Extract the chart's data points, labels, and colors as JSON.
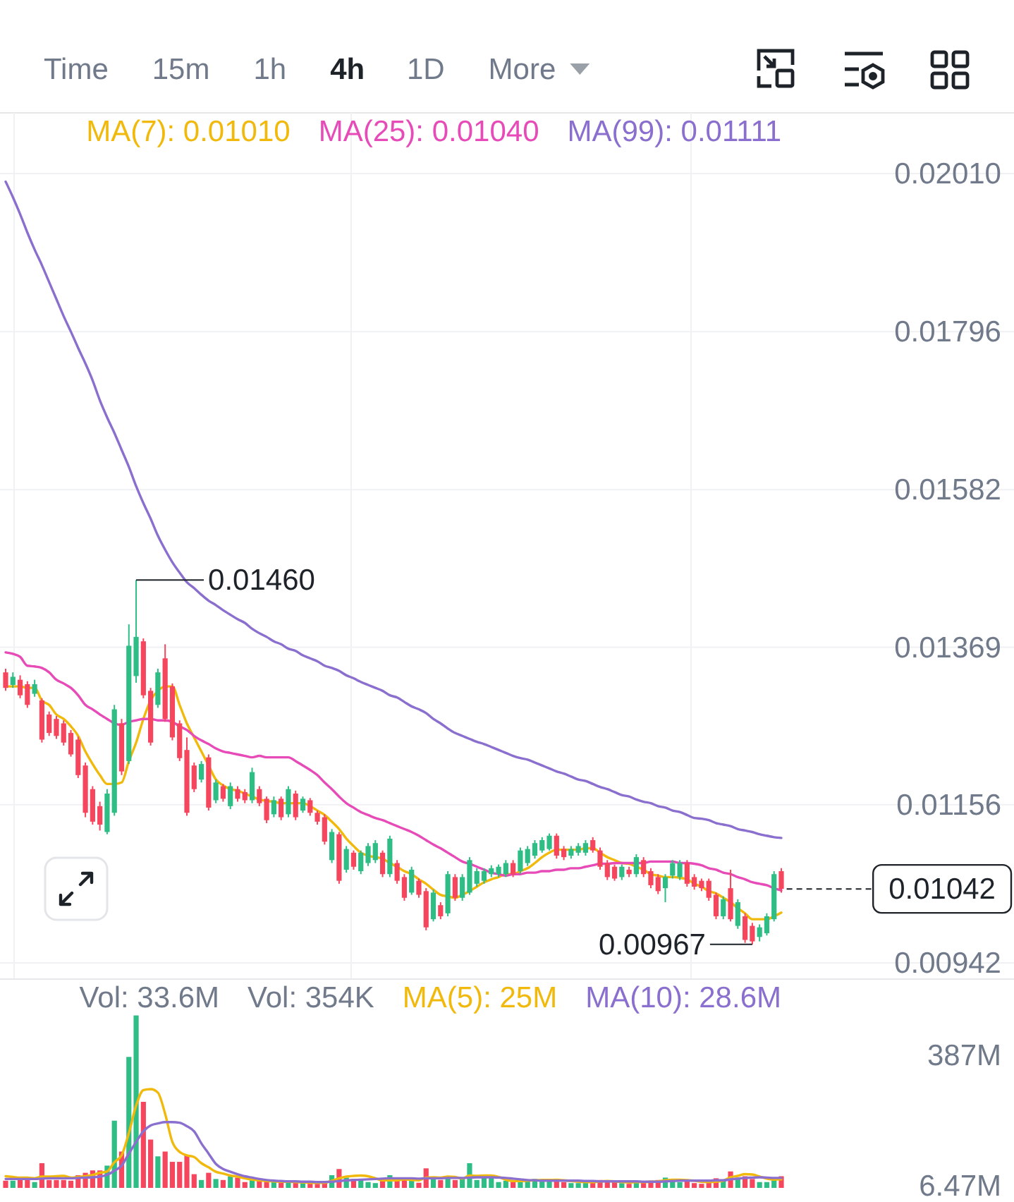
{
  "chart_data": [
    {
      "type": "other",
      "annotations": [
        "Time",
        "15m",
        "1h",
        "4h",
        "1D",
        "More"
      ]
    },
    {
      "type": "candlestick",
      "categories": [
        null,
        null,
        null,
        null,
        null,
        null,
        null,
        null,
        null,
        null,
        null,
        null,
        null,
        null,
        null,
        null,
        null,
        null,
        null,
        null,
        null,
        null,
        null,
        null,
        null,
        null,
        null,
        null,
        null,
        null,
        null,
        null,
        null,
        null,
        null,
        null,
        null,
        null,
        null,
        null,
        null,
        null,
        null,
        null,
        null,
        null,
        null,
        null,
        null,
        null,
        null,
        null,
        null,
        null,
        null,
        null,
        null,
        null,
        null,
        null,
        null,
        null,
        null,
        null,
        null,
        null,
        null,
        null,
        null,
        null,
        null,
        null,
        null,
        null,
        null,
        null,
        null,
        null,
        null,
        null,
        null,
        null,
        null,
        null,
        null,
        null,
        null,
        null,
        null,
        null,
        null,
        null,
        null,
        null,
        null,
        null,
        null,
        null,
        null,
        null,
        null,
        null,
        null,
        null,
        null,
        null,
        null,
        null
      ],
      "ohlc": [
        [
          0.01335,
          0.0134,
          0.0131,
          0.01314
        ],
        [
          0.01318,
          0.01335,
          0.01314,
          0.01329
        ],
        [
          0.01325,
          0.01331,
          0.013,
          0.01304
        ],
        [
          0.01319,
          0.01323,
          0.01287,
          0.01291
        ],
        [
          0.01306,
          0.01325,
          0.01302,
          0.01319
        ],
        [
          0.01297,
          0.013,
          0.0124,
          0.01244
        ],
        [
          0.01278,
          0.01282,
          0.01249,
          0.01253
        ],
        [
          0.01272,
          0.01276,
          0.01245,
          0.01249
        ],
        [
          0.01266,
          0.0127,
          0.01236,
          0.0124
        ],
        [
          0.01253,
          0.01257,
          0.01221,
          0.01224
        ],
        [
          0.01244,
          0.01248,
          0.01192,
          0.01196
        ],
        [
          0.01209,
          0.01213,
          0.01139,
          0.01145
        ],
        [
          0.01177,
          0.01181,
          0.01129,
          0.01133
        ],
        [
          0.01154,
          0.0116,
          0.01121,
          0.01129
        ],
        [
          0.01119,
          0.01177,
          0.01116,
          0.01171
        ],
        [
          0.01145,
          0.01291,
          0.01141,
          0.01285
        ],
        [
          0.01266,
          0.01272,
          0.01196,
          0.01201
        ],
        [
          0.01215,
          0.014,
          0.01211,
          0.01371
        ],
        [
          0.0133,
          0.0146,
          0.01321,
          0.01383
        ],
        [
          0.01377,
          0.01381,
          0.013,
          0.01304
        ],
        [
          0.0131,
          0.01314,
          0.01236,
          0.0124
        ],
        [
          0.01291,
          0.0134,
          0.01287,
          0.01335
        ],
        [
          0.01354,
          0.01373,
          0.01268,
          0.01272
        ],
        [
          0.01316,
          0.0132,
          0.01243,
          0.01247
        ],
        [
          0.01266,
          0.0127,
          0.01215,
          0.01219
        ],
        [
          0.0123,
          0.01247,
          0.01141,
          0.01145
        ],
        [
          0.01209,
          0.01213,
          0.01173,
          0.01177
        ],
        [
          0.0119,
          0.01215,
          0.01186,
          0.01211
        ],
        [
          0.0122,
          0.01224,
          0.01148,
          0.01152
        ],
        [
          0.01162,
          0.0119,
          0.01158,
          0.01186
        ],
        [
          0.01181,
          0.01184,
          0.0116,
          0.01164
        ],
        [
          0.01154,
          0.01186,
          0.0115,
          0.01181
        ],
        [
          0.01177,
          0.01181,
          0.0116,
          0.01164
        ],
        [
          0.01173,
          0.01177,
          0.01158,
          0.01162
        ],
        [
          0.01162,
          0.01206,
          0.01158,
          0.012
        ],
        [
          0.01177,
          0.01181,
          0.01154,
          0.01158
        ],
        [
          0.01164,
          0.01167,
          0.01131,
          0.01135
        ],
        [
          0.01143,
          0.01167,
          0.01139,
          0.01162
        ],
        [
          0.01164,
          0.01167,
          0.01135,
          0.01139
        ],
        [
          0.01143,
          0.01181,
          0.01139,
          0.01177
        ],
        [
          0.01171,
          0.01175,
          0.01135,
          0.01139
        ],
        [
          0.01148,
          0.01167,
          0.01145,
          0.01164
        ],
        [
          0.01162,
          0.01165,
          0.01141,
          0.01145
        ],
        [
          0.01145,
          0.01148,
          0.01129,
          0.01133
        ],
        [
          0.01139,
          0.01143,
          0.01102,
          0.01106
        ],
        [
          0.01081,
          0.01123,
          0.01077,
          0.01119
        ],
        [
          0.01116,
          0.01119,
          0.01049,
          0.01053
        ],
        [
          0.01068,
          0.011,
          0.01064,
          0.01096
        ],
        [
          0.01091,
          0.01094,
          0.01068,
          0.01072
        ],
        [
          0.01066,
          0.01094,
          0.01062,
          0.01091
        ],
        [
          0.01077,
          0.01104,
          0.01073,
          0.011
        ],
        [
          0.01081,
          0.01108,
          0.01077,
          0.01104
        ],
        [
          0.01091,
          0.01094,
          0.01058,
          0.01062
        ],
        [
          0.01062,
          0.01114,
          0.01058,
          0.0111
        ],
        [
          0.01077,
          0.01081,
          0.01049,
          0.01053
        ],
        [
          0.01058,
          0.01062,
          0.01026,
          0.0103
        ],
        [
          0.01037,
          0.01072,
          0.01034,
          0.01068
        ],
        [
          0.01053,
          0.01056,
          0.0103,
          0.01034
        ],
        [
          0.01039,
          0.01043,
          0.00986,
          0.0099
        ],
        [
          0.01001,
          0.01041,
          0.00998,
          0.01037
        ],
        [
          0.0102,
          0.01024,
          0.01001,
          0.01005
        ],
        [
          0.01009,
          0.01066,
          0.01005,
          0.01062
        ],
        [
          0.01058,
          0.01062,
          0.01026,
          0.0103
        ],
        [
          0.0103,
          0.01062,
          0.01026,
          0.01058
        ],
        [
          0.01037,
          0.01085,
          0.01034,
          0.01081
        ],
        [
          0.01049,
          0.0107,
          0.01045,
          0.01066
        ],
        [
          0.01053,
          0.0107,
          0.01049,
          0.01066
        ],
        [
          0.01062,
          0.01074,
          0.01058,
          0.0107
        ],
        [
          0.01062,
          0.01075,
          0.01058,
          0.01072
        ],
        [
          0.01062,
          0.01081,
          0.01058,
          0.01077
        ],
        [
          0.01077,
          0.01081,
          0.01058,
          0.01062
        ],
        [
          0.01066,
          0.01098,
          0.01062,
          0.01094
        ],
        [
          0.01077,
          0.011,
          0.01073,
          0.01096
        ],
        [
          0.01087,
          0.01108,
          0.01083,
          0.01104
        ],
        [
          0.01094,
          0.01112,
          0.01091,
          0.01108
        ],
        [
          0.01096,
          0.01117,
          0.01094,
          0.01114
        ],
        [
          0.01114,
          0.01117,
          0.01083,
          0.01087
        ],
        [
          0.01096,
          0.011,
          0.01081,
          0.01085
        ],
        [
          0.01087,
          0.011,
          0.01083,
          0.01096
        ],
        [
          0.01091,
          0.01104,
          0.01087,
          0.011
        ],
        [
          0.01091,
          0.01108,
          0.01087,
          0.01104
        ],
        [
          0.01108,
          0.01112,
          0.01091,
          0.01094
        ],
        [
          0.01094,
          0.01098,
          0.01068,
          0.01072
        ],
        [
          0.01077,
          0.01081,
          0.01054,
          0.01058
        ],
        [
          0.01072,
          0.01075,
          0.01053,
          0.01056
        ],
        [
          0.01058,
          0.01075,
          0.01054,
          0.01072
        ],
        [
          0.01068,
          0.01072,
          0.01058,
          0.01062
        ],
        [
          0.01062,
          0.01089,
          0.01058,
          0.01085
        ],
        [
          0.01081,
          0.01085,
          0.01058,
          0.01062
        ],
        [
          0.01066,
          0.0107,
          0.01043,
          0.01047
        ],
        [
          0.01058,
          0.01062,
          0.01035,
          0.01039
        ],
        [
          0.01043,
          0.01062,
          0.01024,
          0.01058
        ],
        [
          0.0106,
          0.01081,
          0.01056,
          0.01077
        ],
        [
          0.01058,
          0.01081,
          0.01054,
          0.01077
        ],
        [
          0.01077,
          0.01081,
          0.01045,
          0.01049
        ],
        [
          0.01058,
          0.01062,
          0.01041,
          0.01045
        ],
        [
          0.01053,
          0.01056,
          0.01039,
          0.01043
        ],
        [
          0.01053,
          0.01056,
          0.01026,
          0.0103
        ],
        [
          0.01034,
          0.01037,
          0.01001,
          0.01005
        ],
        [
          0.01005,
          0.01032,
          0.01001,
          0.01028
        ],
        [
          0.01043,
          0.01068,
          0.00998,
          0.01001
        ],
        [
          0.00992,
          0.01028,
          0.00988,
          0.01024
        ],
        [
          0.01005,
          0.01009,
          0.00969,
          0.00973
        ],
        [
          0.00992,
          0.00996,
          0.00967,
          0.00971
        ],
        [
          0.00977,
          0.00994,
          0.00971,
          0.0099
        ],
        [
          0.00982,
          0.01009,
          0.00979,
          0.01005
        ],
        [
          0.01001,
          0.01066,
          0.00998,
          0.01062
        ],
        [
          0.01066,
          0.0107,
          0.01037,
          0.01042
        ]
      ],
      "colors": [
        "#f6465d",
        "#2ebd85",
        "#f6465d",
        "#f6465d",
        "#2ebd85",
        "#f6465d",
        "#f6465d",
        "#f6465d",
        "#f6465d",
        "#f6465d",
        "#f6465d",
        "#f6465d",
        "#f6465d",
        "#f6465d",
        "#2ebd85",
        "#2ebd85",
        "#f6465d",
        "#2ebd85",
        "#2ebd85",
        "#f6465d",
        "#f6465d",
        "#2ebd85",
        "#f6465d",
        "#f6465d",
        "#f6465d",
        "#f6465d",
        "#f6465d",
        "#2ebd85",
        "#f6465d",
        "#2ebd85",
        "#f6465d",
        "#2ebd85",
        "#f6465d",
        "#f6465d",
        "#2ebd85",
        "#f6465d",
        "#f6465d",
        "#2ebd85",
        "#f6465d",
        "#2ebd85",
        "#f6465d",
        "#2ebd85",
        "#f6465d",
        "#f6465d",
        "#f6465d",
        "#2ebd85",
        "#f6465d",
        "#2ebd85",
        "#f6465d",
        "#2ebd85",
        "#2ebd85",
        "#2ebd85",
        "#f6465d",
        "#2ebd85",
        "#f6465d",
        "#f6465d",
        "#2ebd85",
        "#f6465d",
        "#f6465d",
        "#2ebd85",
        "#f6465d",
        "#2ebd85",
        "#f6465d",
        "#2ebd85",
        "#2ebd85",
        "#2ebd85",
        "#2ebd85",
        "#2ebd85",
        "#2ebd85",
        "#2ebd85",
        "#f6465d",
        "#2ebd85",
        "#2ebd85",
        "#2ebd85",
        "#2ebd85",
        "#2ebd85",
        "#f6465d",
        "#f6465d",
        "#2ebd85",
        "#2ebd85",
        "#2ebd85",
        "#f6465d",
        "#f6465d",
        "#f6465d",
        "#f6465d",
        "#2ebd85",
        "#f6465d",
        "#2ebd85",
        "#f6465d",
        "#f6465d",
        "#f6465d",
        "#2ebd85",
        "#2ebd85",
        "#2ebd85",
        "#f6465d",
        "#f6465d",
        "#f6465d",
        "#f6465d",
        "#f6465d",
        "#2ebd85",
        "#f6465d",
        "#2ebd85",
        "#f6465d",
        "#f6465d",
        "#2ebd85",
        "#2ebd85",
        "#2ebd85",
        "#f6465d"
      ],
      "series": [
        {
          "name": "MA(7): 0.01010",
          "type": "line",
          "color": "#f0b90b",
          "values": [
            0.01316,
            0.01316,
            0.01316,
            0.01314,
            0.01314,
            0.01297,
            0.01291,
            0.01278,
            0.01272,
            0.01262,
            0.01249,
            0.01228,
            0.01211,
            0.01196,
            0.01184,
            0.01184,
            0.01186,
            0.01215,
            0.0124,
            0.01272,
            0.01297,
            0.0131,
            0.01316,
            0.01316,
            0.01291,
            0.01266,
            0.01247,
            0.01228,
            0.01209,
            0.0119,
            0.01182,
            0.01177,
            0.01175,
            0.01171,
            0.01167,
            0.01163,
            0.01161,
            0.0116,
            0.01158,
            0.01158,
            0.01158,
            0.01158,
            0.01154,
            0.01148,
            0.01142,
            0.01133,
            0.01123,
            0.0111,
            0.011,
            0.01091,
            0.01087,
            0.01085,
            0.01083,
            0.01077,
            0.01072,
            0.01066,
            0.01062,
            0.01055,
            0.01049,
            0.01041,
            0.01034,
            0.01032,
            0.0103,
            0.01034,
            0.01039,
            0.01045,
            0.01051,
            0.01055,
            0.01058,
            0.01062,
            0.01062,
            0.01066,
            0.0107,
            0.01077,
            0.01085,
            0.01091,
            0.01095,
            0.01095,
            0.01095,
            0.01095,
            0.01097,
            0.01097,
            0.01091,
            0.01085,
            0.01081,
            0.01077,
            0.01076,
            0.01072,
            0.01068,
            0.01062,
            0.0106,
            0.01058,
            0.01058,
            0.01057,
            0.01055,
            0.01049,
            0.01045,
            0.01039,
            0.01036,
            0.0103,
            0.01024,
            0.01016,
            0.01009,
            0.01001,
            0.01001,
            0.01001,
            0.01005,
            0.0101
          ]
        },
        {
          "name": "MA(25): 0.01040",
          "type": "line",
          "color": "#e64bb8",
          "values": [
            0.01362,
            0.0136,
            0.01356,
            0.01344,
            0.01343,
            0.01341,
            0.01335,
            0.01325,
            0.0132,
            0.01314,
            0.01304,
            0.01291,
            0.01285,
            0.01278,
            0.01272,
            0.01266,
            0.01264,
            0.01268,
            0.0127,
            0.01272,
            0.01272,
            0.0127,
            0.0127,
            0.01268,
            0.01262,
            0.01257,
            0.01249,
            0.01243,
            0.01238,
            0.01232,
            0.01228,
            0.01226,
            0.01224,
            0.01222,
            0.0122,
            0.01222,
            0.0122,
            0.0122,
            0.0122,
            0.0122,
            0.01215,
            0.01209,
            0.01203,
            0.01196,
            0.01186,
            0.01177,
            0.01167,
            0.01158,
            0.01152,
            0.01146,
            0.01142,
            0.01138,
            0.01135,
            0.01131,
            0.01127,
            0.01123,
            0.01119,
            0.01114,
            0.01108,
            0.01102,
            0.01097,
            0.01091,
            0.01085,
            0.01079,
            0.01076,
            0.01072,
            0.01068,
            0.01064,
            0.01062,
            0.0106,
            0.01062,
            0.01062,
            0.01064,
            0.01064,
            0.01066,
            0.01066,
            0.01068,
            0.01068,
            0.0107,
            0.0107,
            0.01072,
            0.01074,
            0.01076,
            0.01076,
            0.01077,
            0.01077,
            0.01077,
            0.01077,
            0.01077,
            0.01079,
            0.01079,
            0.01079,
            0.01079,
            0.01077,
            0.01077,
            0.01076,
            0.01074,
            0.0107,
            0.01068,
            0.01064,
            0.01062,
            0.01058,
            0.01055,
            0.01051,
            0.01049,
            0.01047,
            0.01043,
            0.0104
          ]
        },
        {
          "name": "MA(99): 0.01111",
          "type": "line",
          "color": "#8a6fcf",
          "values": [
            0.01999,
            0.01978,
            0.01955,
            0.0193,
            0.01907,
            0.01886,
            0.01863,
            0.0184,
            0.01817,
            0.01796,
            0.01774,
            0.01753,
            0.0173,
            0.01703,
            0.0168,
            0.01659,
            0.01636,
            0.01613,
            0.01587,
            0.01564,
            0.01543,
            0.0152,
            0.01501,
            0.01484,
            0.0147,
            0.01457,
            0.01449,
            0.0144,
            0.01432,
            0.01426,
            0.01419,
            0.01413,
            0.01407,
            0.01402,
            0.01394,
            0.01388,
            0.01383,
            0.01377,
            0.01373,
            0.01367,
            0.01364,
            0.01358,
            0.01354,
            0.0135,
            0.01344,
            0.01341,
            0.01337,
            0.01331,
            0.01327,
            0.01322,
            0.01318,
            0.01314,
            0.0131,
            0.01304,
            0.01301,
            0.01295,
            0.01289,
            0.01285,
            0.0128,
            0.01272,
            0.01266,
            0.01259,
            0.01253,
            0.01249,
            0.01245,
            0.01241,
            0.01238,
            0.01234,
            0.0123,
            0.01226,
            0.01222,
            0.01219,
            0.01217,
            0.01213,
            0.01209,
            0.01205,
            0.01201,
            0.01198,
            0.01194,
            0.0119,
            0.01188,
            0.01184,
            0.0118,
            0.01177,
            0.01173,
            0.01169,
            0.01167,
            0.01163,
            0.0116,
            0.01158,
            0.01154,
            0.01152,
            0.01148,
            0.01146,
            0.01142,
            0.01138,
            0.01137,
            0.01135,
            0.01131,
            0.01129,
            0.01127,
            0.01123,
            0.01121,
            0.01119,
            0.01116,
            0.01114,
            0.01112,
            0.01111
          ]
        }
      ],
      "ylim": [
        0.0092,
        0.02092
      ],
      "yticks": [
        {
          "value": 0.0201,
          "label": "0.02010"
        },
        0.01796,
        0.01582,
        0.01369,
        0.01156,
        0.00942
      ],
      "tick_labels": "y",
      "grid": true,
      "legend": "top right",
      "ref_lines": [
        {
          "axis": "y",
          "value": 0.01042,
          "label": "0.01042",
          "color": "#1e2329",
          "line_style": "dashed"
        }
      ],
      "annotations": [
        "0.01460",
        "0.00967"
      ]
    },
    {
      "type": "bar",
      "categories": [
        null,
        null,
        null,
        null,
        null,
        null,
        null,
        null,
        null,
        null,
        null,
        null,
        null,
        null,
        null,
        null,
        null,
        null,
        null,
        null,
        null,
        null,
        null,
        null,
        null,
        null,
        null,
        null,
        null,
        null,
        null,
        null,
        null,
        null,
        null,
        null,
        null,
        null,
        null,
        null,
        null,
        null,
        null,
        null,
        null,
        null,
        null,
        null,
        null,
        null,
        null,
        null,
        null,
        null,
        null,
        null,
        null,
        null,
        null,
        null,
        null,
        null,
        null,
        null,
        null,
        null,
        null,
        null,
        null,
        null,
        null,
        null,
        null,
        null,
        null,
        null,
        null,
        null,
        null,
        null,
        null,
        null,
        null,
        null,
        null,
        null,
        null,
        null,
        null,
        null,
        null,
        null,
        null,
        null,
        null,
        null,
        null,
        null,
        null,
        null,
        null,
        null,
        null,
        null,
        null,
        null,
        null,
        null
      ],
      "series": [
        {
          "type": "bar",
          "values": [
            21,
            21,
            23,
            30,
            17,
            72,
            23,
            23,
            23,
            21,
            37,
            44,
            51,
            51,
            65,
            196,
            106,
            382,
            503,
            251,
            141,
            92,
            106,
            76,
            76,
            95,
            40,
            23,
            44,
            26,
            23,
            34,
            30,
            17,
            23,
            21,
            21,
            17,
            17,
            17,
            17,
            14,
            14,
            12,
            14,
            37,
            55,
            30,
            26,
            23,
            17,
            14,
            21,
            37,
            23,
            26,
            21,
            15,
            57,
            30,
            23,
            28,
            23,
            26,
            72,
            23,
            30,
            30,
            17,
            21,
            17,
            21,
            23,
            26,
            21,
            23,
            26,
            17,
            14,
            14,
            17,
            21,
            23,
            21,
            17,
            14,
            12,
            21,
            17,
            21,
            23,
            30,
            23,
            17,
            23,
            14,
            12,
            21,
            28,
            21,
            48,
            30,
            34,
            26,
            17,
            17,
            31,
            34
          ],
          "colors": [
            "#f6465d",
            "#2ebd85",
            "#f6465d",
            "#f6465d",
            "#2ebd85",
            "#f6465d",
            "#f6465d",
            "#f6465d",
            "#f6465d",
            "#f6465d",
            "#f6465d",
            "#f6465d",
            "#f6465d",
            "#f6465d",
            "#2ebd85",
            "#2ebd85",
            "#f6465d",
            "#2ebd85",
            "#2ebd85",
            "#f6465d",
            "#f6465d",
            "#2ebd85",
            "#f6465d",
            "#f6465d",
            "#f6465d",
            "#f6465d",
            "#f6465d",
            "#2ebd85",
            "#f6465d",
            "#2ebd85",
            "#f6465d",
            "#2ebd85",
            "#f6465d",
            "#f6465d",
            "#2ebd85",
            "#f6465d",
            "#f6465d",
            "#2ebd85",
            "#f6465d",
            "#2ebd85",
            "#f6465d",
            "#2ebd85",
            "#f6465d",
            "#f6465d",
            "#f6465d",
            "#2ebd85",
            "#f6465d",
            "#2ebd85",
            "#f6465d",
            "#2ebd85",
            "#2ebd85",
            "#2ebd85",
            "#f6465d",
            "#2ebd85",
            "#f6465d",
            "#f6465d",
            "#2ebd85",
            "#f6465d",
            "#f6465d",
            "#2ebd85",
            "#f6465d",
            "#2ebd85",
            "#f6465d",
            "#2ebd85",
            "#2ebd85",
            "#2ebd85",
            "#2ebd85",
            "#2ebd85",
            "#2ebd85",
            "#2ebd85",
            "#f6465d",
            "#2ebd85",
            "#2ebd85",
            "#2ebd85",
            "#2ebd85",
            "#2ebd85",
            "#f6465d",
            "#f6465d",
            "#2ebd85",
            "#2ebd85",
            "#2ebd85",
            "#f6465d",
            "#f6465d",
            "#f6465d",
            "#f6465d",
            "#2ebd85",
            "#f6465d",
            "#2ebd85",
            "#f6465d",
            "#f6465d",
            "#f6465d",
            "#2ebd85",
            "#2ebd85",
            "#2ebd85",
            "#f6465d",
            "#f6465d",
            "#f6465d",
            "#f6465d",
            "#f6465d",
            "#2ebd85",
            "#f6465d",
            "#2ebd85",
            "#f6465d",
            "#f6465d",
            "#2ebd85",
            "#2ebd85",
            "#2ebd85",
            "#f6465d"
          ]
        },
        {
          "name": "MA(5): 25M",
          "type": "line",
          "color": "#f0b90b",
          "values": [
            34,
            32,
            30,
            30,
            28,
            33,
            33,
            34,
            35,
            30,
            32,
            34,
            38,
            44,
            48,
            75,
            95,
            160,
            240,
            285,
            288,
            278,
            216,
            134,
            105,
            95,
            90,
            72,
            60,
            47,
            42,
            36,
            33,
            28,
            24,
            22,
            20,
            19,
            18,
            18,
            17,
            16,
            15,
            15,
            15,
            21,
            28,
            33,
            35,
            36,
            34,
            28,
            22,
            22,
            22,
            25,
            23,
            22,
            30,
            31,
            30,
            33,
            32,
            27,
            36,
            35,
            36,
            36,
            32,
            24,
            20,
            20,
            21,
            22,
            23,
            23,
            24,
            22,
            20,
            18,
            17,
            17,
            19,
            20,
            19,
            17,
            16,
            17,
            17,
            18,
            19,
            22,
            24,
            24,
            23,
            21,
            18,
            17,
            18,
            21,
            31,
            35,
            40,
            39,
            33,
            27,
            24,
            25
          ]
        },
        {
          "name": "MA(10): 28.6M",
          "type": "line",
          "color": "#8a6fcf",
          "values": [
            26,
            26,
            26,
            26,
            26,
            27,
            28,
            28,
            28,
            28,
            29,
            30,
            31,
            33,
            38,
            50,
            65,
            100,
            134,
            165,
            182,
            188,
            192,
            192,
            190,
            180,
            165,
            130,
            100,
            70,
            55,
            47,
            40,
            34,
            30,
            26,
            23,
            21,
            20,
            19,
            19,
            18,
            18,
            17,
            17,
            18,
            20,
            22,
            23,
            24,
            25,
            26,
            27,
            28,
            28,
            28,
            28,
            27,
            28,
            28,
            28,
            29,
            29,
            29,
            30,
            31,
            31,
            31,
            30,
            29,
            27,
            25,
            23,
            22,
            21,
            21,
            21,
            21,
            21,
            21,
            20,
            20,
            19,
            19,
            19,
            19,
            19,
            19,
            18,
            18,
            18,
            19,
            20,
            21,
            21,
            21,
            21,
            21,
            22,
            22,
            25,
            27,
            29,
            30,
            31,
            30,
            29,
            29
          ]
        }
      ],
      "ylim": [
        0,
        609
      ],
      "yticks": [
        {
          "value": 6.47,
          "label": "6.47M"
        },
        {
          "value": 387,
          "label": "387M"
        }
      ],
      "tick_labels": "y",
      "legend": "top right",
      "annotations": [
        "Vol: 33.6M",
        "Vol: 354K"
      ]
    }
  ]
}
